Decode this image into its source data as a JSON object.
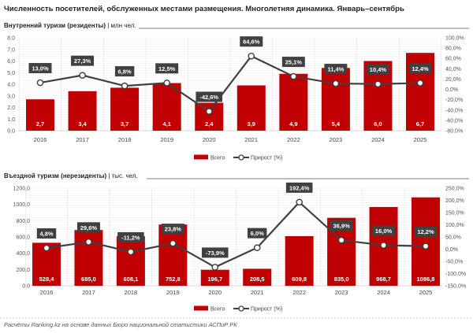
{
  "title": "Численность посетителей, обслуженных местами размещения. Многолетняя динамика. Январь–сентябрь",
  "footer": "Расчёты Ranking.kz на основе данных Бюро национальной статистики АСПиР РК",
  "colors": {
    "bar": "#c00000",
    "line": "#404040",
    "label_box": "#404040"
  },
  "chart_data": [
    {
      "type": "bar+line",
      "subtitle": "Внутренний туризм (резиденты)",
      "unit": "млн чел.",
      "categories": [
        "2016",
        "2017",
        "2018",
        "2019",
        "2020",
        "2021",
        "2022",
        "2023",
        "2024",
        "2025"
      ],
      "series": [
        {
          "name": "Всего",
          "type": "bar",
          "axis": "left",
          "values": [
            2.7,
            3.4,
            3.7,
            4.1,
            2.4,
            3.9,
            4.9,
            5.4,
            6.0,
            6.7
          ],
          "labels": [
            "2,7",
            "3,4",
            "3,7",
            "4,1",
            "2,4",
            "3,9",
            "4,9",
            "5,4",
            "6,0",
            "6,7"
          ]
        },
        {
          "name": "Прирост (%)",
          "type": "line",
          "axis": "right",
          "values": [
            13.0,
            27.3,
            6.8,
            12.5,
            -42.6,
            64.6,
            25.1,
            11.4,
            10.4,
            12.4
          ],
          "labels": [
            "13,0%",
            "27,3%",
            "6,8%",
            "12,5%",
            "-42,6%",
            "64,6%",
            "25,1%",
            "11,4%",
            "10,4%",
            "12,4%"
          ]
        }
      ],
      "ylim": [
        0,
        8
      ],
      "yticks": [
        "0,0",
        "1,0",
        "2,0",
        "3,0",
        "4,0",
        "5,0",
        "6,0",
        "7,0",
        "8,0"
      ],
      "y2lim": [
        -80,
        100
      ],
      "y2ticks": [
        "-80,0%",
        "-60,0%",
        "-40,0%",
        "-20,0%",
        "0,0%",
        "20,0%",
        "40,0%",
        "60,0%",
        "80,0%",
        "100,0%"
      ],
      "grid": true,
      "legend": "bottom"
    },
    {
      "type": "bar+line",
      "subtitle": "Въездной туризм (нерезиденты)",
      "unit": "тыс. чел.",
      "categories": [
        "2016",
        "2017",
        "2018",
        "2019",
        "2020",
        "2021",
        "2022",
        "2023",
        "2024",
        "2025"
      ],
      "series": [
        {
          "name": "Всего",
          "type": "bar",
          "axis": "left",
          "values": [
            528.4,
            685.0,
            608.1,
            752.8,
            196.7,
            208.5,
            609.8,
            835.0,
            968.7,
            1086.8
          ],
          "labels": [
            "528,4",
            "685,0",
            "608,1",
            "752,8",
            "196,7",
            "208,5",
            "609,8",
            "835,0",
            "968,7",
            "1086,8"
          ]
        },
        {
          "name": "Прирост (%)",
          "type": "line",
          "axis": "right",
          "values": [
            4.8,
            29.6,
            -11.2,
            23.8,
            -73.9,
            6.0,
            192.4,
            36.9,
            16.0,
            12.2
          ],
          "labels": [
            "4,8%",
            "29,6%",
            "-11,2%",
            "23,8%",
            "-73,9%",
            "6,0%",
            "192,4%",
            "36,9%",
            "16,0%",
            "12,2%"
          ]
        }
      ],
      "ylim": [
        0,
        1200
      ],
      "yticks": [
        "0,0",
        "200,0",
        "400,0",
        "600,0",
        "800,0",
        "1000,0",
        "1200,0"
      ],
      "y2lim": [
        -150,
        250
      ],
      "y2ticks": [
        "-150,0%",
        "-100,0%",
        "-50,0%",
        "0,0%",
        "50,0%",
        "100,0%",
        "150,0%",
        "200,0%",
        "250,0%"
      ],
      "grid": true,
      "legend": "bottom"
    }
  ]
}
